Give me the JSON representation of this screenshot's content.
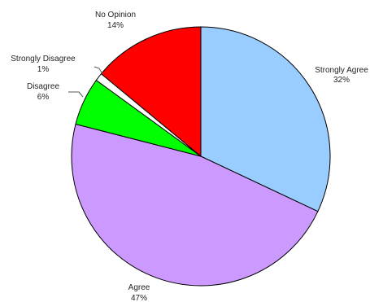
{
  "chart_data": {
    "type": "pie",
    "title": "",
    "start_angle_deg": 0,
    "direction": "clockwise",
    "slices": [
      {
        "name": "Strongly Agree",
        "label": "Strongly Agree",
        "value": 32,
        "pct_label": "32%",
        "color": "#99ccff"
      },
      {
        "name": "Agree",
        "label": "Agree",
        "value": 47,
        "pct_label": "47%",
        "color": "#cc99ff"
      },
      {
        "name": "Disagree",
        "label": "Disagree",
        "value": 6,
        "pct_label": "6%",
        "color": "#00ff00"
      },
      {
        "name": "Strongly Disagree",
        "label": "Strongly Disagree",
        "value": 1,
        "pct_label": "1%",
        "color": "#ffffff"
      },
      {
        "name": "No Opinion",
        "label": "No Opinion",
        "value": 14,
        "pct_label": "14%",
        "color": "#ff0000"
      }
    ]
  }
}
